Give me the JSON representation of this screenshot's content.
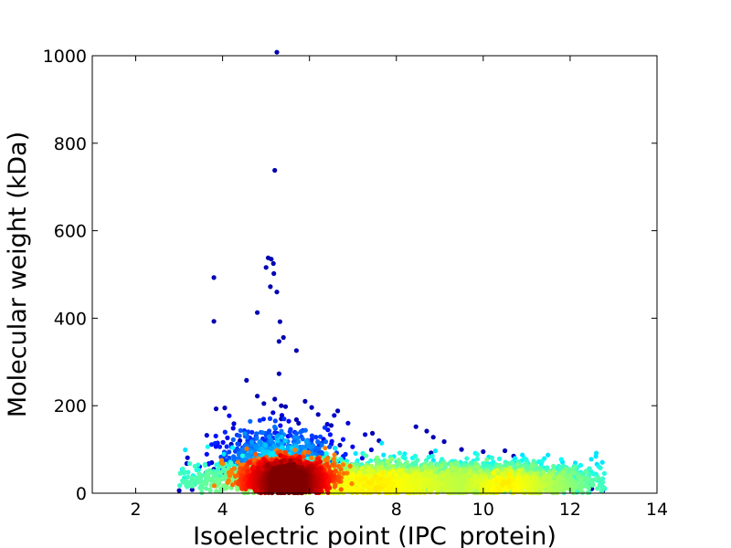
{
  "chart_data": {
    "type": "scatter",
    "title": "",
    "xlabel": "Isoelectric point (IPC_protein)",
    "ylabel": "Molecular weight (kDa)",
    "xlim": [
      1,
      14
    ],
    "ylim": [
      0,
      1000
    ],
    "xticks": [
      2,
      4,
      6,
      8,
      10,
      12,
      14
    ],
    "yticks": [
      0,
      200,
      400,
      600,
      800,
      1000
    ],
    "grid": false,
    "legend": "none",
    "colormap": "jet (point density)",
    "colors": {
      "low_density": "#00008f",
      "mid_density": "#00ffff",
      "high_density": "#ff0000",
      "max_density": "#800000"
    },
    "points": [
      {
        "x": 5.25,
        "y": 1008
      },
      {
        "x": 5.2,
        "y": 738
      },
      {
        "x": 5.05,
        "y": 538
      },
      {
        "x": 5.12,
        "y": 535
      },
      {
        "x": 5.17,
        "y": 525
      },
      {
        "x": 5.0,
        "y": 516
      },
      {
        "x": 5.18,
        "y": 502
      },
      {
        "x": 3.8,
        "y": 493
      },
      {
        "x": 5.1,
        "y": 472
      },
      {
        "x": 5.25,
        "y": 460
      },
      {
        "x": 4.8,
        "y": 413
      },
      {
        "x": 3.8,
        "y": 393
      },
      {
        "x": 5.32,
        "y": 392
      },
      {
        "x": 5.4,
        "y": 356
      },
      {
        "x": 5.3,
        "y": 347
      },
      {
        "x": 5.7,
        "y": 326
      },
      {
        "x": 5.3,
        "y": 273
      },
      {
        "x": 4.55,
        "y": 258
      },
      {
        "x": 4.8,
        "y": 222
      },
      {
        "x": 5.2,
        "y": 215
      },
      {
        "x": 5.9,
        "y": 210
      },
      {
        "x": 4.95,
        "y": 205
      },
      {
        "x": 5.35,
        "y": 200
      },
      {
        "x": 5.45,
        "y": 198
      },
      {
        "x": 6.05,
        "y": 196
      },
      {
        "x": 3.85,
        "y": 193
      },
      {
        "x": 4.05,
        "y": 195
      },
      {
        "x": 6.65,
        "y": 188
      },
      {
        "x": 6.2,
        "y": 180
      },
      {
        "x": 5.7,
        "y": 168
      },
      {
        "x": 5.75,
        "y": 160
      },
      {
        "x": 5.35,
        "y": 170
      },
      {
        "x": 8.45,
        "y": 152
      },
      {
        "x": 6.5,
        "y": 155
      },
      {
        "x": 8.7,
        "y": 142
      },
      {
        "x": 7.45,
        "y": 137
      },
      {
        "x": 8.85,
        "y": 128
      },
      {
        "x": 9.1,
        "y": 118
      },
      {
        "x": 7.6,
        "y": 120
      },
      {
        "x": 6.7,
        "y": 110
      },
      {
        "x": 4.4,
        "y": 120
      },
      {
        "x": 4.2,
        "y": 112
      },
      {
        "x": 8.8,
        "y": 92
      },
      {
        "x": 10.5,
        "y": 97
      },
      {
        "x": 10.0,
        "y": 95
      },
      {
        "x": 9.5,
        "y": 100
      },
      {
        "x": 10.7,
        "y": 85
      },
      {
        "x": 11.9,
        "y": 42
      },
      {
        "x": 11.95,
        "y": 32
      },
      {
        "x": 3.0,
        "y": 6
      },
      {
        "x": 3.3,
        "y": 8
      },
      {
        "x": 12.75,
        "y": 5
      },
      {
        "x": 12.5,
        "y": 10
      },
      {
        "x": 3.75,
        "y": 70
      },
      {
        "x": 3.8,
        "y": 55
      }
    ],
    "density_clusters": [
      {
        "x_center": 5.5,
        "y_center": 30,
        "x_spread": 0.45,
        "y_spread": 22,
        "level": "high",
        "count": 3000
      },
      {
        "x_center": 7.5,
        "y_center": 28,
        "x_spread": 2.2,
        "y_spread": 22,
        "level": "medium",
        "count": 3500
      },
      {
        "x_center": 10.5,
        "y_center": 25,
        "x_spread": 1.1,
        "y_spread": 20,
        "level": "medium",
        "count": 1400
      },
      {
        "x_center": 5.3,
        "y_center": 70,
        "x_spread": 0.7,
        "y_spread": 40,
        "level": "low",
        "count": 800
      }
    ]
  }
}
